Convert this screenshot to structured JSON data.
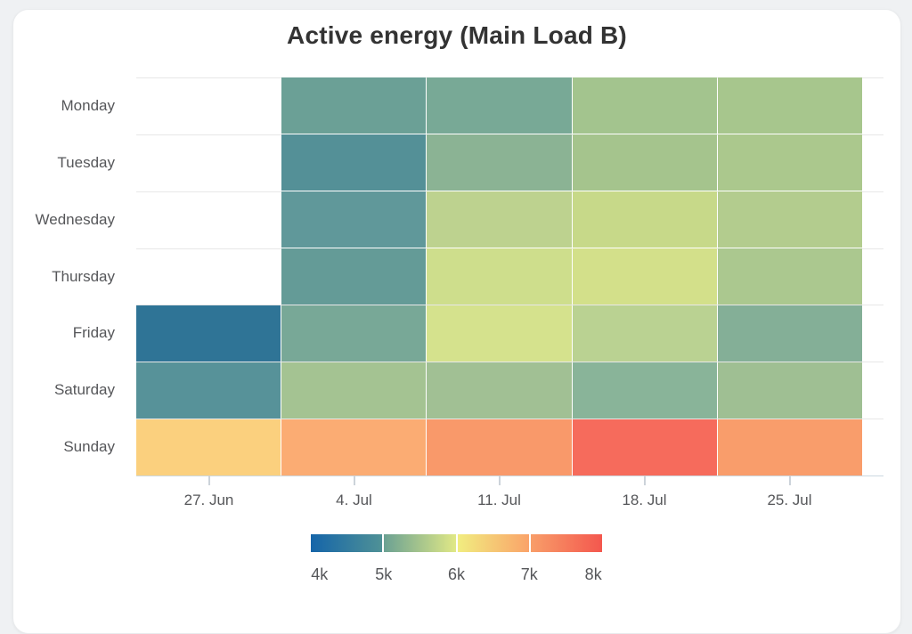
{
  "page": {
    "background_color": "#eff1f3"
  },
  "card": {
    "background_color": "#ffffff"
  },
  "chart_data": {
    "type": "heatmap",
    "title": "Active energy (Main Load B)",
    "xlabel": "",
    "ylabel": "",
    "x_categories": [
      "27. Jun",
      "4. Jul",
      "11. Jul",
      "18. Jul",
      "25. Jul"
    ],
    "y_categories": [
      "Monday",
      "Tuesday",
      "Wednesday",
      "Thursday",
      "Friday",
      "Saturday",
      "Sunday"
    ],
    "values_estimated_from_colorscale": [
      [
        null,
        5100,
        5200,
        5500,
        5550
      ],
      [
        null,
        4900,
        5350,
        5500,
        5600
      ],
      [
        null,
        5000,
        5700,
        5800,
        5650
      ],
      [
        null,
        5050,
        5800,
        5900,
        5600
      ],
      [
        4300,
        5200,
        5900,
        5700,
        5300
      ],
      [
        4900,
        5500,
        5500,
        5300,
        5500
      ],
      [
        6300,
        6800,
        7100,
        7700,
        7000
      ]
    ],
    "cell_colors": [
      [
        null,
        "#6ba096",
        "#78a996",
        "#a3c48e",
        "#a7c68d"
      ],
      [
        null,
        "#549097",
        "#8bb394",
        "#a5c48d",
        "#abc88d"
      ],
      [
        null,
        "#60989a",
        "#bdd28f",
        "#c7d989",
        "#b3cc8e"
      ],
      [
        null,
        "#649b97",
        "#cede8c",
        "#d3e08a",
        "#abc88f"
      ],
      [
        "#2f7496",
        "#78a897",
        "#d5e28d",
        "#bad292",
        "#84af97"
      ],
      [
        "#579299",
        "#a4c392",
        "#a1c094",
        "#89b499",
        "#9fbf93"
      ],
      [
        "#fbd07e",
        "#fbac73",
        "#f9996a",
        "#f66b5c",
        "#f99d6b"
      ]
    ],
    "color_axis": {
      "min": 4000,
      "max": 8000,
      "tick_labels": [
        "4k",
        "5k",
        "6k",
        "7k",
        "8k"
      ],
      "gradient_segments": [
        {
          "from": "#1565a9",
          "to": "#4f9196"
        },
        {
          "from": "#6ba193",
          "to": "#e0e886"
        },
        {
          "from": "#f1ed80",
          "to": "#faa369"
        },
        {
          "from": "#f89e69",
          "to": "#f4574e"
        }
      ],
      "legend_position": "bottom"
    },
    "grid": true,
    "axis_label_color": "#56575a",
    "gridline_color": "#e7e7e7",
    "axis_line_color": "#ccd8e0",
    "title_color": "#333333"
  }
}
